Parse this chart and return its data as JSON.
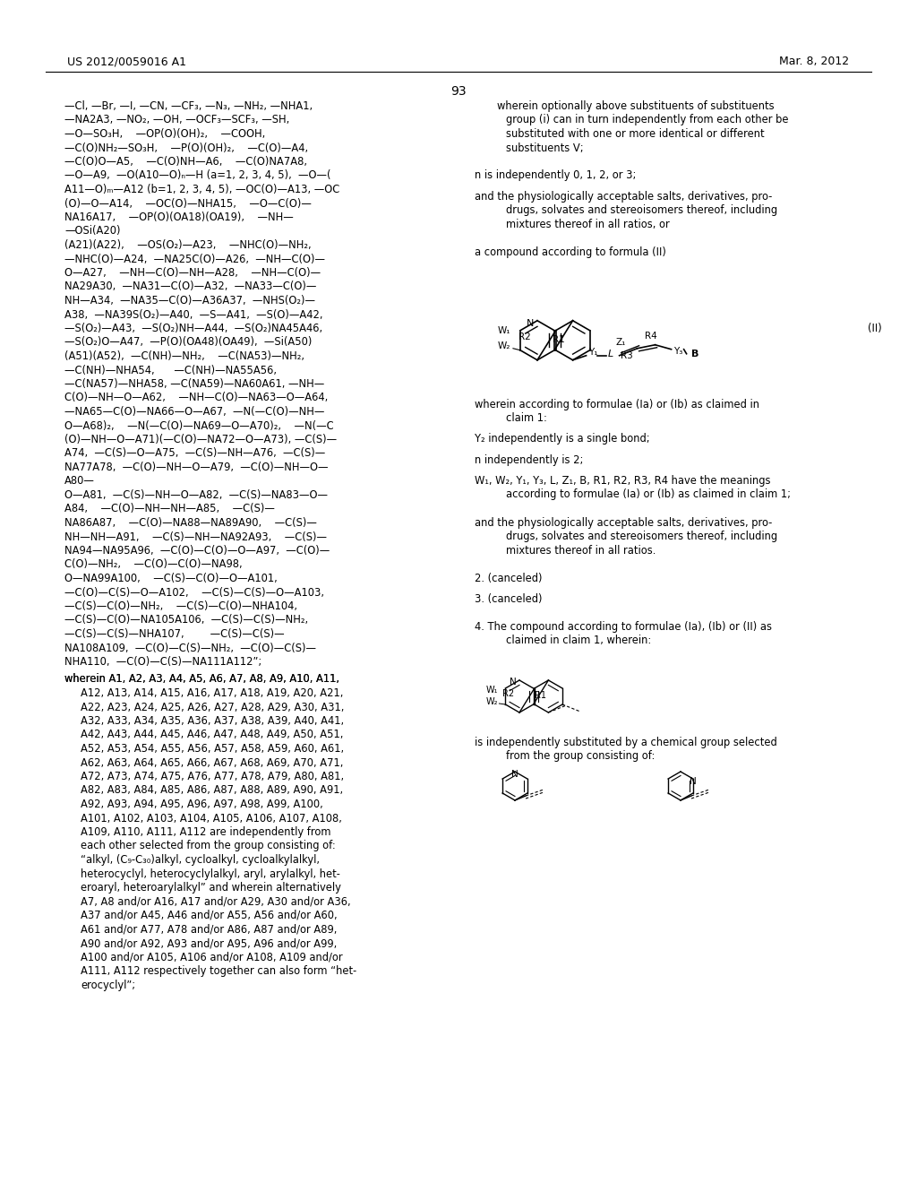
{
  "page_header_left": "US 2012/0059016 A1",
  "page_header_right": "Mar. 8, 2012",
  "page_number": "93",
  "bg_color": "#ffffff",
  "text_color": "#000000",
  "left_column_text": [
    "—Cl, —Br, —I, —CN, —CF₃, —N₃, —NH₂, —NHA1,",
    "—NA2A3, —NO₂, —OH, —OCF₃—SCF₃, —SH,",
    "—O—SO₃H,    —OP(O)(OH)₂,    —COOH,",
    "—C(O)NH₂—SO₃H,    —P(O)(OH)₂,    —C(O)—A4,",
    "—C(O)O—A5,    —C(O)NH—A6,    —C(O)NA7A8,",
    "—O—A9,  —O(A10—O)ₙ—H (a=1, 2, 3, 4, 5),  —O—(",
    "A11—O)ₘ—A12 (b=1, 2, 3, 4, 5), —OC(O)—A13, —OC",
    "(O)—O—A14,    —OC(O)—NHA15,    —O—C(O)—",
    "NA16A17,    —OP(O)(OA18)(OA19),    —NH—",
    "—OSi(A20)",
    "(A21)(A22),    —OS(O₂)—A23,    —NHC(O)—NH₂,",
    "—NHC(O)—A24,  —NA25C(O)—A26,  —NH—C(O)—",
    "O—A27,    —NH—C(O)—NH—A28,    —NH—C(O)—",
    "NA29A30,  —NA31—C(O)—A32,  —NA33—C(O)—",
    "NH—A34,  —NA35—C(O)—A36A37,  —NHS(O₂)—",
    "A38,  —NA39S(O₂)—A40,  —S—A41,  —S(O)—A42,",
    "—S(O₂)—A43,  —S(O₂)NH—A44,  —S(O₂)NA45A46,",
    "—S(O₂)O—A47,  —P(O)(OA48)(OA49),  —Si(A50)",
    "(A51)(A52),  —C(NH)—NH₂,    —C(NA53)—NH₂,",
    "—C(NH)—NHA54,      —C(NH)—NA55A56,",
    "—C(NA57)—NHA58, —C(NA59)—NA60A61, —NH—",
    "C(O)—NH—O—A62,    —NH—C(O)—NA63—O—A64,",
    "—NA65—C(O)—NA66—O—A67,  —N(—C(O)—NH—",
    "O—A68)₂,    —N(—C(O)—NA69—O—A70)₂,    —N(—C",
    "(O)—NH—O—A71)(—C(O)—NA72—O—A73), —C(S)—",
    "A74,  —C(S)—O—A75,  —C(S)—NH—A76,  —C(S)—",
    "NA77A78,  —C(O)—NH—O—A79,  —C(O)—NH—O—",
    "A80—",
    "O—A81,  —C(S)—NH—O—A82,  —C(S)—NA83—O—",
    "A84,    —C(O)—NH—NH—A85,    —C(S)—",
    "NA86A87,    —C(O)—NA88—NA89A90,    —C(S)—",
    "NH—NH—A91,    —C(S)—NH—NA92A93,    —C(S)—",
    "NA94—NA95A96,  —C(O)—C(O)—O—A97,  —C(O)—",
    "C(O)—NH₂,    —C(O)—C(O)—NA98,",
    "O—NA99A100,    —C(S)—C(O)—O—A101,",
    "—C(O)—C(S)—O—A102,    —C(S)—C(S)—O—A103,",
    "—C(S)—C(O)—NH₂,    —C(S)—C(O)—NHA104,",
    "—C(S)—C(O)—NA105A106,  —C(S)—C(S)—NH₂,",
    "—C(S)—C(S)—NHA107,        —C(S)—C(S)—",
    "NA108A109,  —C(O)—C(S)—NH₂,  —C(O)—C(S)—",
    "NHA110,  —C(O)—C(S)—NA111A112”;"
  ],
  "left_wherein_text": [
    "wherein A1, A2, A3, A4, A5, A6, A7, A8, A9, A10, A11,",
    "A12, A13, A14, A15, A16, A17, A18, A19, A20, A21,",
    "A22, A23, A24, A25, A26, A27, A28, A29, A30, A31,",
    "A32, A33, A34, A35, A36, A37, A38, A39, A40, A41,",
    "A42, A43, A44, A45, A46, A47, A48, A49, A50, A51,",
    "A52, A53, A54, A55, A56, A57, A58, A59, A60, A61,",
    "A62, A63, A64, A65, A66, A67, A68, A69, A70, A71,",
    "A72, A73, A74, A75, A76, A77, A78, A79, A80, A81,",
    "A82, A83, A84, A85, A86, A87, A88, A89, A90, A91,",
    "A92, A93, A94, A95, A96, A97, A98, A99, A100,",
    "A101, A102, A103, A104, A105, A106, A107, A108,",
    "A109, A110, A111, A112 are independently from",
    "each other selected from the group consisting of:",
    "“alkyl, (C₉-C₃₀)alkyl, cycloalkyl, cycloalkylalkyl,",
    "heterocyclyl, heterocyclylalkyl, aryl, arylalkyl, het-",
    "eroaryl, heteroarylalkyl” and wherein alternatively",
    "A7, A8 and/or A16, A17 and/or A29, A30 and/or A36,",
    "A37 and/or A45, A46 and/or A55, A56 and/or A60,",
    "A61 and/or A77, A78 and/or A86, A87 and/or A89,",
    "A90 and/or A92, A93 and/or A95, A96 and/or A99,",
    "A100 and/or A105, A106 and/or A108, A109 and/or",
    "A111, A112 respectively together can also form “het-",
    "erocyclyl”;"
  ],
  "right_column_text_top": [
    "wherein optionally above substituents of substituents",
    "group (i) can in turn independently from each other be",
    "substituted with one or more identical or different",
    "substituents V;"
  ],
  "right_text_2": "n is independently 0, 1, 2, or 3;",
  "right_text_3": [
    "and the physiologically acceptable salts, derivatives, pro-",
    "drugs, solvates and stereoisomers thereof, including",
    "mixtures thereof in all ratios, or"
  ],
  "right_text_4": "a compound according to formula (II)",
  "formula_II_label": "(II)",
  "right_text_5": [
    "wherein according to formulae (Ia) or (Ib) as claimed in",
    "claim 1:"
  ],
  "right_text_6": "Y₂ independently is a single bond;",
  "right_text_7": "n independently is 2;",
  "right_text_8": [
    "W₁, W₂, Y₁, Y₃, L, Z₁, B, R1, R2, R3, R4 have the meanings",
    "according to formulae (Ia) or (Ib) as claimed in claim 1;"
  ],
  "right_text_9": [
    "and the physiologically acceptable salts, derivatives, pro-",
    "drugs, solvates and stereoisomers thereof, including",
    "mixtures thereof in all ratios."
  ],
  "right_text_10": "2. (canceled)",
  "right_text_11": "3. (canceled)",
  "right_text_12": [
    "4. The compound according to formulae (Ia), (Ib) or (II) as",
    "claimed in claim 1, wherein:"
  ],
  "right_text_13": [
    "is independently substituted by a chemical group selected",
    "from the group consisting of:"
  ]
}
